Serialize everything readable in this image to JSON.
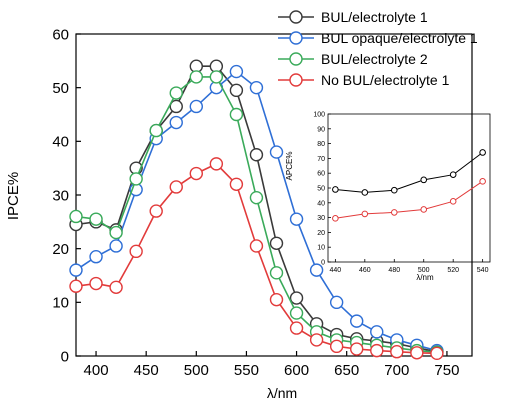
{
  "chart_data": [
    {
      "type": "line",
      "xlabel": "λ/nm",
      "ylabel": "IPCE%",
      "xlim": [
        380,
        775
      ],
      "ylim": [
        0,
        60
      ],
      "xticks": [
        400,
        450,
        500,
        550,
        600,
        650,
        700,
        750
      ],
      "yticks": [
        0,
        10,
        20,
        30,
        40,
        50,
        60
      ],
      "grid": false,
      "legend": "top-right",
      "marker": "open-circle",
      "series": [
        {
          "name": "BUL/electrolyte 1",
          "color": "#3a3a3a",
          "x": [
            380,
            400,
            420,
            440,
            460,
            480,
            500,
            520,
            540,
            560,
            580,
            600,
            620,
            640,
            660,
            680,
            700,
            720,
            740
          ],
          "y": [
            24.5,
            25.0,
            23.5,
            35.0,
            42.0,
            46.5,
            54.0,
            54.0,
            49.5,
            37.5,
            21.0,
            10.8,
            6.0,
            4.0,
            3.2,
            2.8,
            2.3,
            1.5,
            0.8
          ]
        },
        {
          "name": "BUL opaque/electrolyte 1",
          "color": "#2f6fd6",
          "x": [
            380,
            400,
            420,
            440,
            460,
            480,
            500,
            520,
            540,
            560,
            580,
            600,
            620,
            640,
            660,
            680,
            700,
            720,
            740
          ],
          "y": [
            16.0,
            18.5,
            20.5,
            31.0,
            40.5,
            43.5,
            46.5,
            50.0,
            53.0,
            50.0,
            38.0,
            25.5,
            16.0,
            10.0,
            6.5,
            4.5,
            3.0,
            2.0,
            1.0
          ]
        },
        {
          "name": "BUL/electrolyte 2",
          "color": "#3aaa5a",
          "x": [
            380,
            400,
            420,
            440,
            460,
            480,
            500,
            520,
            540,
            560,
            580,
            600,
            620,
            640,
            660,
            680,
            700,
            720,
            740
          ],
          "y": [
            26.0,
            25.5,
            23.0,
            33.0,
            42.0,
            49.0,
            52.0,
            52.0,
            45.0,
            29.5,
            15.5,
            8.0,
            4.5,
            3.0,
            2.5,
            2.0,
            1.5,
            1.0,
            0.7
          ]
        },
        {
          "name": "No BUL/electrolyte 1",
          "color": "#e23b3b",
          "x": [
            380,
            400,
            420,
            440,
            460,
            480,
            500,
            520,
            540,
            560,
            580,
            600,
            620,
            640,
            660,
            680,
            700,
            720,
            740
          ],
          "y": [
            13.0,
            13.5,
            12.8,
            19.5,
            27.0,
            31.5,
            34.0,
            35.8,
            32.0,
            20.5,
            10.5,
            5.2,
            3.0,
            1.8,
            1.3,
            1.0,
            0.8,
            0.6,
            0.5
          ]
        }
      ]
    },
    {
      "type": "line",
      "role": "inset",
      "xlabel": "λ/nm",
      "ylabel": "APCE%",
      "xlim": [
        435,
        545
      ],
      "ylim": [
        0,
        100
      ],
      "xticks": [
        440,
        460,
        480,
        500,
        520,
        540
      ],
      "yticks": [
        0,
        10,
        20,
        30,
        40,
        50,
        60,
        70,
        80,
        90,
        100
      ],
      "marker": "open-circle",
      "series": [
        {
          "color": "#000000",
          "x": [
            440,
            460,
            480,
            500,
            520,
            540
          ],
          "y": [
            49.0,
            47.0,
            48.5,
            55.5,
            59.0,
            74.0
          ]
        },
        {
          "color": "#e23b3b",
          "x": [
            440,
            460,
            480,
            500,
            520,
            540
          ],
          "y": [
            29.5,
            32.5,
            33.5,
            35.5,
            41.0,
            54.5
          ]
        }
      ]
    }
  ]
}
